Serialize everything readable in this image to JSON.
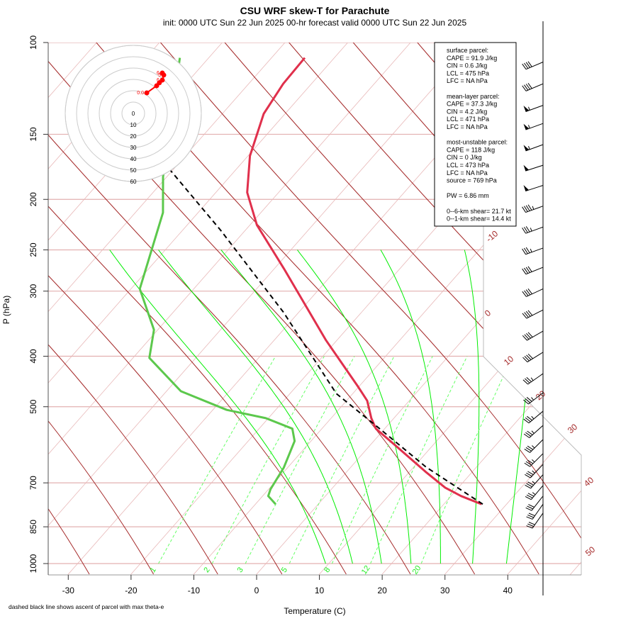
{
  "header": {
    "title": "CSU WRF skew-T for Parachute",
    "subtitle": "init: 0000 UTC Sun 22 Jun 2025    00-hr forecast valid 0000 UTC Sun 22 Jun 2025"
  },
  "footnote": "dashed black line shows ascent of parcel with max theta-e",
  "colors": {
    "temperature": "#e0304c",
    "dewpoint": "#5cc84c",
    "parcel": "#000000",
    "isotherm": "#e8b8b8",
    "dry_adiabat": "#a52a2a",
    "moist_adiabat": "#00ee00",
    "mixing_ratio": "#66ff66",
    "isobar": "#e3b0b0",
    "hodograph": "#ff0000"
  },
  "params_box": {
    "lines": [
      "surface parcel:",
      "CAPE = 91.9 J/kg",
      "CIN = 0.6 J/kg",
      "LCL = 475 hPa",
      "LFC = NA hPa",
      "",
      "mean-layer parcel:",
      "CAPE = 37.3 J/kg",
      "CIN = 4.2 J/kg",
      "LCL = 471 hPa",
      "LFC = NA hPa",
      "",
      "most-unstable parcel:",
      "CAPE = 118 J/kg",
      "CIN = 0 J/kg",
      "LCL = 473 hPa",
      "LFC = NA hPa",
      "source = 769 hPa",
      "",
      "PW =  6.86 mm",
      "",
      "0--6-km shear= 21.7 kt",
      "0--1-km shear= 14.4 kt"
    ]
  },
  "chart_data": {
    "type": "line",
    "subtype": "skew-T log-P",
    "title": "CSU WRF skew-T for Parachute",
    "xlabel": "Temperature (C)",
    "ylabel": "P (hPa)",
    "xlim": [
      -33,
      50
    ],
    "ylim": [
      1050,
      100
    ],
    "yscale": "log",
    "x_ticks": [
      -30,
      -20,
      -10,
      0,
      10,
      20,
      30,
      40
    ],
    "y_ticks": [
      100,
      150,
      200,
      250,
      300,
      400,
      500,
      700,
      850,
      1000
    ],
    "grid": true,
    "series": [
      {
        "id": "temperature",
        "style": "solid-thick",
        "points": [
          [
            769,
            26.0
          ],
          [
            742,
            21.6
          ],
          [
            715,
            17.9
          ],
          [
            666,
            12.5
          ],
          [
            597,
            4.5
          ],
          [
            551,
            -1.4
          ],
          [
            526,
            -3.6
          ],
          [
            487,
            -6.7
          ],
          [
            457,
            -10.2
          ],
          [
            373,
            -21.7
          ],
          [
            272,
            -38.4
          ],
          [
            224,
            -48.9
          ],
          [
            194,
            -55.0
          ],
          [
            165,
            -59.7
          ],
          [
            137,
            -63.4
          ],
          [
            120,
            -64.5
          ],
          [
            107,
            -64.7
          ]
        ]
      },
      {
        "id": "dewpoint",
        "style": "solid-thick",
        "points": [
          [
            769,
            -6.8
          ],
          [
            742,
            -9.1
          ],
          [
            720,
            -9.7
          ],
          [
            655,
            -10.6
          ],
          [
            582,
            -12.6
          ],
          [
            551,
            -14.7
          ],
          [
            526,
            -20.4
          ],
          [
            507,
            -27.8
          ],
          [
            467,
            -37.7
          ],
          [
            403,
            -47.4
          ],
          [
            356,
            -50.6
          ],
          [
            297,
            -58.6
          ],
          [
            212,
            -65.6
          ],
          [
            181,
            -70.6
          ],
          [
            107,
            -84.6
          ]
        ]
      },
      {
        "id": "parcel_max_theta_e",
        "style": "dashed",
        "points": [
          [
            769,
            26.2
          ],
          [
            653,
            12.0
          ],
          [
            551,
            -0.8
          ],
          [
            472,
            -12.6
          ],
          [
            329,
            -32.5
          ],
          [
            229,
            -54.0
          ],
          [
            176,
            -70.3
          ]
        ]
      }
    ],
    "isotherm_labels": [
      -10,
      0,
      10,
      20,
      30,
      40,
      50
    ],
    "moist_adiabats_1000hPa_C": [
      9.5,
      13.8,
      18.4,
      23.1,
      27.8,
      32.9,
      38.3
    ],
    "mixing_ratio_lines_gkg": [
      1,
      2,
      3,
      5,
      8,
      12,
      20
    ],
    "wind_barbs": [
      {
        "p": 109,
        "dir": 247,
        "kt": 40
      },
      {
        "p": 120,
        "dir": 247,
        "kt": 40
      },
      {
        "p": 132,
        "dir": 250,
        "kt": 55
      },
      {
        "p": 143,
        "dir": 250,
        "kt": 55
      },
      {
        "p": 157,
        "dir": 250,
        "kt": 55
      },
      {
        "p": 172,
        "dir": 252,
        "kt": 50
      },
      {
        "p": 188,
        "dir": 252,
        "kt": 50
      },
      {
        "p": 206,
        "dir": 250,
        "kt": 45
      },
      {
        "p": 226,
        "dir": 250,
        "kt": 35
      },
      {
        "p": 248,
        "dir": 250,
        "kt": 35
      },
      {
        "p": 270,
        "dir": 248,
        "kt": 40
      },
      {
        "p": 297,
        "dir": 245,
        "kt": 40
      },
      {
        "p": 326,
        "dir": 243,
        "kt": 40
      },
      {
        "p": 358,
        "dir": 240,
        "kt": 40
      },
      {
        "p": 393,
        "dir": 238,
        "kt": 40
      },
      {
        "p": 432,
        "dir": 235,
        "kt": 35
      },
      {
        "p": 470,
        "dir": 232,
        "kt": 35
      },
      {
        "p": 510,
        "dir": 230,
        "kt": 35
      },
      {
        "p": 543,
        "dir": 228,
        "kt": 35
      },
      {
        "p": 578,
        "dir": 225,
        "kt": 35
      },
      {
        "p": 615,
        "dir": 225,
        "kt": 35
      },
      {
        "p": 645,
        "dir": 223,
        "kt": 35
      },
      {
        "p": 675,
        "dir": 222,
        "kt": 35
      },
      {
        "p": 708,
        "dir": 220,
        "kt": 35
      },
      {
        "p": 742,
        "dir": 218,
        "kt": 30
      },
      {
        "p": 769,
        "dir": 215,
        "kt": 30
      },
      {
        "p": 800,
        "dir": 215,
        "kt": 30
      }
    ],
    "hodograph": {
      "ring_labels": [
        0,
        10,
        20,
        30,
        40,
        50,
        60
      ],
      "units": "kt",
      "points_uv": [
        [
          11.9,
          18.1
        ],
        [
          20.6,
          24.4
        ],
        [
          23.0,
          27.0
        ],
        [
          25.6,
          29.4
        ],
        [
          26.9,
          33.8
        ],
        [
          25.6,
          35.6
        ]
      ],
      "point_labels": [
        "0.0",
        "",
        "",
        "6",
        "5",
        "6"
      ]
    }
  }
}
